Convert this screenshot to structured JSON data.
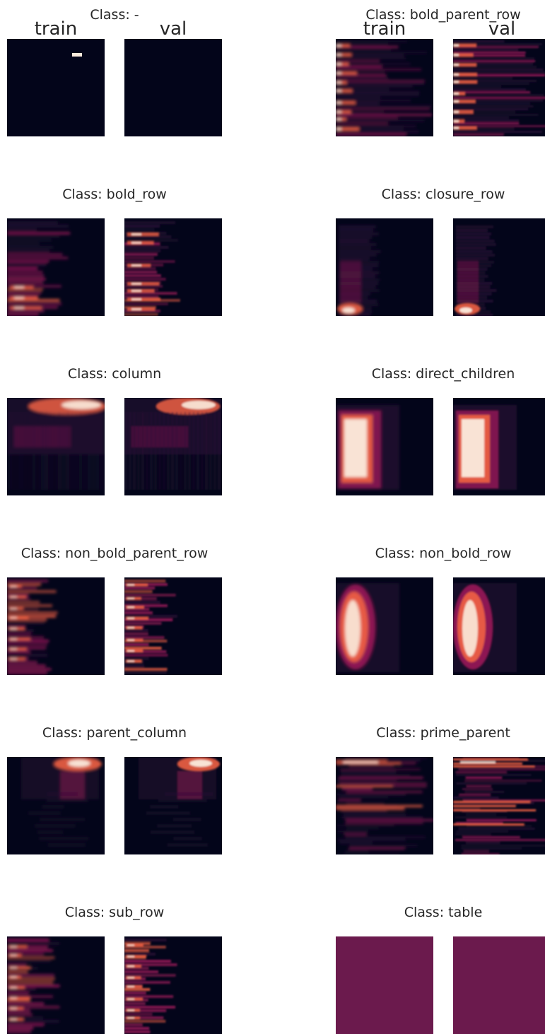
{
  "figure": {
    "column_labels": [
      "train",
      "val"
    ]
  },
  "chart_data": {
    "type": "heatmap",
    "colormap": "rocket",
    "colors": {
      "background": "#03051a",
      "low": "#2b1237",
      "mid": "#a11a5b",
      "high": "#f06043",
      "peak": "#faebdd"
    },
    "panels": [
      {
        "title": "Class: -",
        "class": "-",
        "pattern": "single-speck"
      },
      {
        "title": "Class: bold_parent_row",
        "class": "bold_parent_row",
        "pattern": "left-horizontal-bands"
      },
      {
        "title": "Class: bold_row",
        "class": "bold_row",
        "pattern": "left-bands-bottom-hot"
      },
      {
        "title": "Class: closure_row",
        "class": "closure_row",
        "pattern": "bottom-left-hotspot"
      },
      {
        "title": "Class: column",
        "class": "column",
        "pattern": "top-right-band"
      },
      {
        "title": "Class: direct_children",
        "class": "direct_children",
        "pattern": "left-vertical-block"
      },
      {
        "title": "Class: non_bold_parent_row",
        "class": "non_bold_parent_row",
        "pattern": "left-edge-bands"
      },
      {
        "title": "Class: non_bold_row",
        "class": "non_bold_row",
        "pattern": "left-vertical-oval"
      },
      {
        "title": "Class: parent_column",
        "class": "parent_column",
        "pattern": "top-center-right"
      },
      {
        "title": "Class: prime_parent",
        "class": "prime_parent",
        "pattern": "scattered-horizontal-bands"
      },
      {
        "title": "Class: sub_row",
        "class": "sub_row",
        "pattern": "left-edge-bands"
      },
      {
        "title": "Class: table",
        "class": "table",
        "pattern": "full-fill"
      }
    ]
  }
}
